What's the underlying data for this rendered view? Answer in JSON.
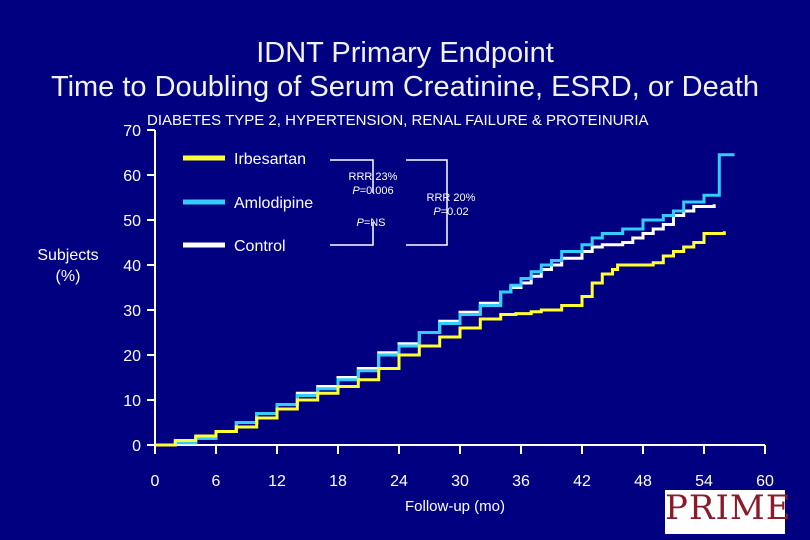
{
  "title_line1": "IDNT Primary Endpoint",
  "title_line2": "Time to Doubling of Serum Creatinine, ESRD, or Death",
  "logo_text": "PRIME",
  "colors": {
    "background": "#000080",
    "irbesartan": "#ffff33",
    "amlodipine": "#33ccff",
    "control": "#ffffff"
  },
  "chart_data": {
    "type": "line",
    "title": "DIABETES TYPE 2, HYPERTENSION, RENAL FAILURE & PROTEINURIA",
    "xlabel": "Follow-up (mo)",
    "ylabel": "Subjects (%)",
    "xlim": [
      0,
      60
    ],
    "ylim": [
      0,
      70
    ],
    "xticks": [
      0,
      6,
      12,
      18,
      24,
      30,
      36,
      42,
      48,
      54,
      60
    ],
    "yticks": [
      0,
      10,
      20,
      30,
      40,
      50,
      60,
      70
    ],
    "legend_position": "top-left",
    "series": [
      {
        "name": "Irbesartan",
        "color": "#ffff33",
        "x": [
          0,
          2,
          4,
          6,
          8,
          10,
          12,
          14,
          16,
          18,
          20,
          22,
          24,
          26,
          28,
          30,
          32,
          34,
          35.5,
          37,
          38,
          39,
          40,
          42,
          43,
          44,
          45,
          45.5,
          47,
          49,
          50,
          51,
          52,
          53,
          54,
          56
        ],
        "y": [
          0,
          1,
          2,
          3,
          4,
          6,
          8,
          10,
          11.5,
          13,
          14.5,
          17,
          20,
          22,
          24,
          26,
          28,
          29,
          29.2,
          29.6,
          30,
          30,
          31,
          33,
          36,
          38,
          39,
          40,
          40,
          40.5,
          42,
          43,
          44,
          45,
          47,
          47.5
        ]
      },
      {
        "name": "Amlodipine",
        "color": "#33ccff",
        "x": [
          0,
          2,
          4,
          6,
          8,
          10,
          12,
          14,
          16,
          18,
          20,
          22,
          24,
          26,
          28,
          30,
          32,
          34,
          35,
          36,
          37,
          38,
          39,
          40,
          42,
          43,
          44,
          46,
          48,
          50,
          51,
          52,
          54,
          55,
          55.5,
          57
        ],
        "y": [
          0,
          0.5,
          1.5,
          3,
          5,
          7,
          9,
          11,
          12.5,
          14.5,
          16.5,
          20,
          22,
          25,
          27,
          29,
          31,
          34,
          35.5,
          37,
          38.5,
          40,
          41,
          43,
          44.5,
          46,
          47,
          48,
          50,
          51,
          52,
          54,
          55.5,
          55.5,
          64.5,
          64.5
        ]
      },
      {
        "name": "Control",
        "color": "#ffffff",
        "x": [
          0,
          2,
          4,
          6,
          8,
          10,
          12,
          14,
          16,
          18,
          20,
          22,
          24,
          26,
          28,
          30,
          32,
          34,
          35,
          36,
          37,
          38,
          39,
          40,
          42,
          43,
          44,
          46,
          47,
          48,
          49,
          50,
          51,
          52,
          53,
          55
        ],
        "y": [
          0,
          0.5,
          1.5,
          3,
          5,
          7,
          9,
          11.5,
          13,
          15,
          17,
          20.5,
          22.5,
          25,
          27.5,
          29.5,
          31.5,
          34,
          35,
          36,
          37.5,
          39,
          40,
          41.5,
          43,
          44,
          44.5,
          45,
          46,
          47,
          48,
          49,
          51,
          52,
          53,
          53.5
        ]
      }
    ],
    "annotations": [
      {
        "line1": "RRR 23%",
        "line2_p": "P",
        "line2_rest": "=0.006"
      },
      {
        "line1": "RRR 20%",
        "line2_p": "P",
        "line2_rest": "=0.02"
      },
      {
        "line1_p": "P",
        "line1_rest": "=NS"
      }
    ]
  }
}
